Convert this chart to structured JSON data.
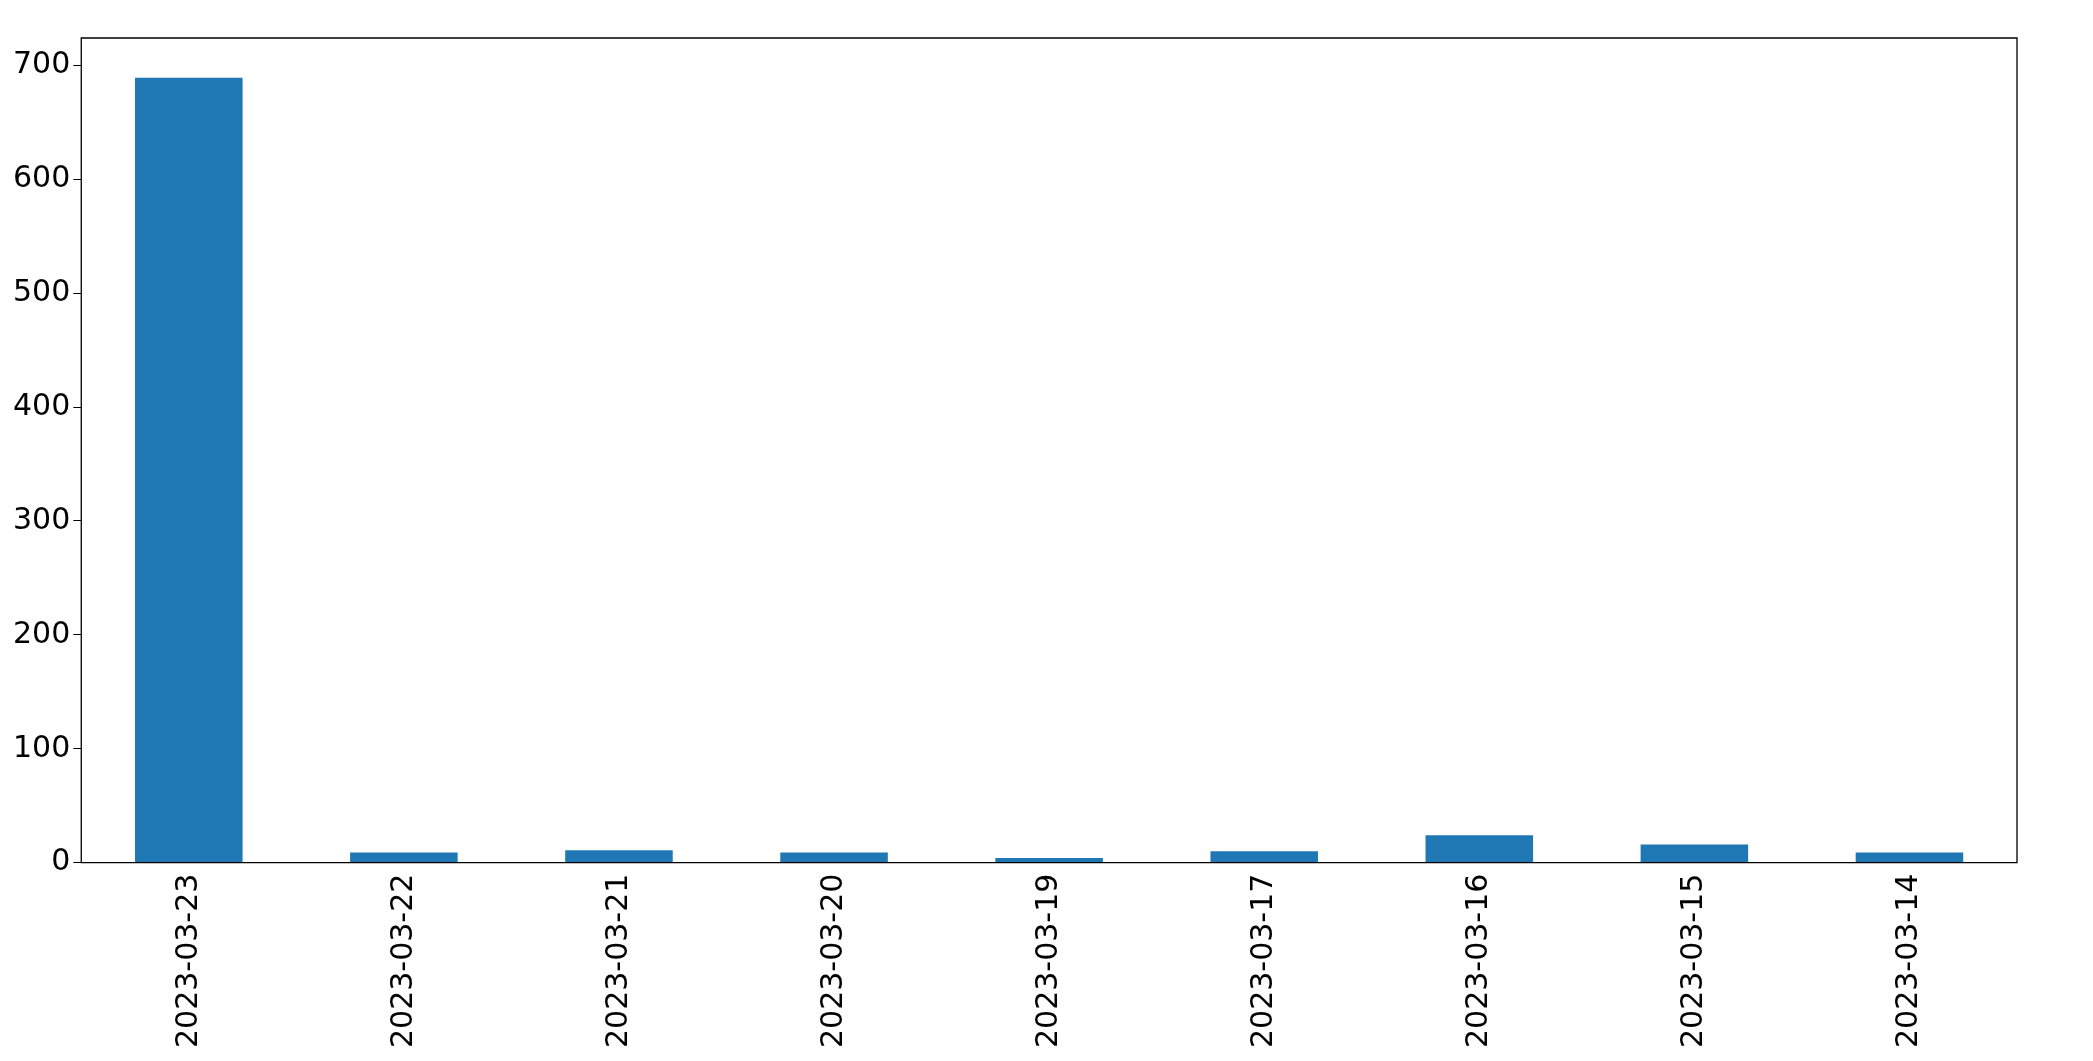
{
  "chart_data": {
    "type": "bar",
    "categories": [
      "2023-03-23",
      "2023-03-22",
      "2023-03-21",
      "2023-03-20",
      "2023-03-19",
      "2023-03-17",
      "2023-03-16",
      "2023-03-15",
      "2023-03-14"
    ],
    "values": [
      689,
      9,
      11,
      9,
      4,
      10,
      24,
      16,
      9
    ],
    "color": "#1f77b4",
    "ylim": [
      0,
      724
    ],
    "yticks": [
      0,
      100,
      200,
      300,
      400,
      500,
      600,
      700
    ],
    "grid": false,
    "legend": false
  }
}
